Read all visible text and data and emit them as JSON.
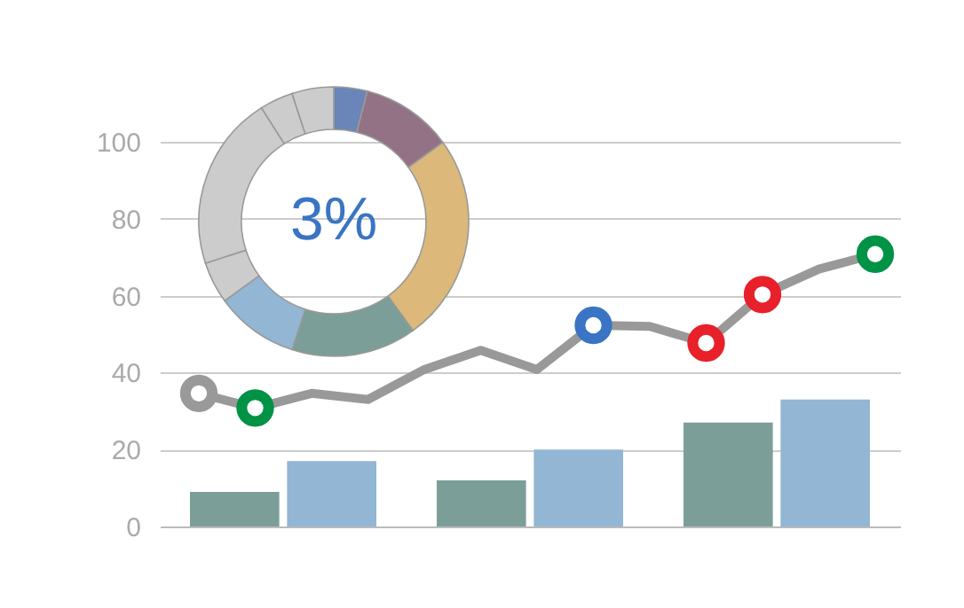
{
  "chart_data": [
    {
      "type": "donut",
      "categories": [
        null,
        null,
        null,
        null,
        null,
        null,
        null,
        null,
        null
      ],
      "values": [
        4,
        11,
        25,
        15,
        10,
        5,
        21,
        4,
        5
      ],
      "colors": [
        "#6a85b8",
        "#947285",
        "#dcb97a",
        "#7c9e98",
        "#92b6d4",
        "#cccccc",
        "#cccccc",
        "#cccccc",
        "#cccccc"
      ],
      "annotations": [
        "3%"
      ]
    },
    {
      "type": "bar",
      "categories": [
        null,
        null,
        null
      ],
      "ylim": [
        0,
        100
      ],
      "yticks": [
        0,
        20,
        40,
        60,
        80,
        100
      ],
      "grid": "y",
      "tick_labels": "y",
      "series": [
        {
          "color": "#7c9e98",
          "values": [
            9,
            12,
            27
          ]
        },
        {
          "color": "#92b6d4",
          "values": [
            17,
            20,
            33
          ]
        }
      ]
    },
    {
      "type": "line",
      "categories": [
        null,
        null,
        null,
        null,
        null,
        null,
        null,
        null,
        null,
        null,
        null,
        null,
        null
      ],
      "ylim": [
        0,
        100
      ],
      "tick_labels": false,
      "line_style": "solid",
      "series": [
        {
          "color": "#999999",
          "values": [
            34.6,
            30.8,
            34.6,
            33,
            40.8,
            45.8,
            40.8,
            52.3,
            52,
            47.7,
            60.3,
            66.9,
            70.8
          ],
          "colors": [
            "#999999",
            "#009245",
            null,
            null,
            null,
            null,
            null,
            "#3a74c4",
            null,
            "#e8202a",
            "#e8202a",
            null,
            "#009245"
          ]
        }
      ]
    }
  ]
}
